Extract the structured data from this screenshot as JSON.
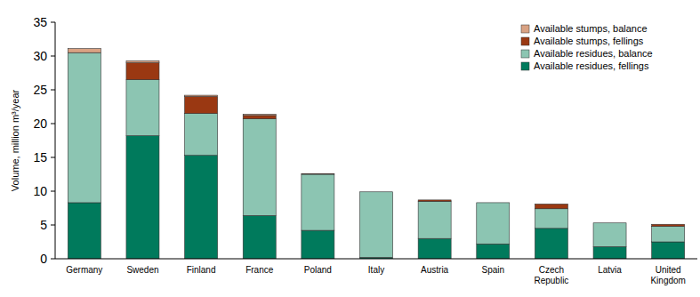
{
  "chart_data": {
    "type": "bar",
    "stacked": true,
    "legend": "top-right",
    "grid": false,
    "y_label": "Volume, million m³/year",
    "categories": [
      "Germany",
      "Sweden",
      "Finland",
      "France",
      "Poland",
      "Italy",
      "Austria",
      "Spain",
      "Czech Republic",
      "Latvia",
      "United Kingdom"
    ],
    "ylim": [
      0,
      35
    ],
    "yticks": [
      0,
      5,
      10,
      15,
      20,
      25,
      30,
      35
    ],
    "series": [
      {
        "name": "Available residues, fellings",
        "color": "#007a5c",
        "values": [
          8.3,
          18.2,
          15.3,
          6.4,
          4.2,
          0.2,
          3.0,
          2.2,
          4.5,
          1.8,
          2.5
        ]
      },
      {
        "name": "Available residues, balance",
        "color": "#8cc5b2",
        "values": [
          22.2,
          8.3,
          6.2,
          14.3,
          8.3,
          9.7,
          5.5,
          6.1,
          2.9,
          3.5,
          2.3
        ]
      },
      {
        "name": "Available stumps, fellings",
        "color": "#9a3812",
        "values": [
          0,
          2.5,
          2.5,
          0.5,
          0.1,
          0,
          0.2,
          0,
          0.7,
          0,
          0.3
        ]
      },
      {
        "name": "Available stumps, balance",
        "color": "#d9a283",
        "values": [
          0.6,
          0.3,
          0.2,
          0.2,
          0,
          0,
          0,
          0,
          0,
          0,
          0
        ]
      }
    ]
  }
}
